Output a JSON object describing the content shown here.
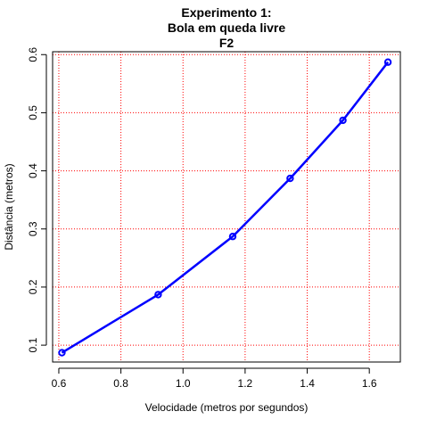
{
  "chart_data": {
    "type": "line",
    "title_lines": [
      "Experimento 1:",
      "Bola em queda livre",
      "F2"
    ],
    "xlabel": "Velocidade (metros por segundos)",
    "ylabel": "Distância (metros)",
    "xlim": [
      0.58,
      1.7
    ],
    "ylim": [
      0.071,
      0.605
    ],
    "x_ticks": [
      0.6,
      0.8,
      1.0,
      1.2,
      1.4,
      1.6
    ],
    "x_tick_labels": [
      "0.6",
      "0.8",
      "1.0",
      "1.2",
      "1.4",
      "1.6"
    ],
    "y_ticks": [
      0.1,
      0.2,
      0.3,
      0.4,
      0.5,
      0.6
    ],
    "y_tick_labels": [
      "0.1",
      "0.2",
      "0.3",
      "0.4",
      "0.5",
      "0.6"
    ],
    "grid": true,
    "grid_color": "#ff0000",
    "series": [
      {
        "color": "#0000ff",
        "marker": "circle",
        "x": [
          0.61,
          0.92,
          1.16,
          1.345,
          1.515,
          1.66
        ],
        "y": [
          0.087,
          0.187,
          0.287,
          0.387,
          0.487,
          0.587
        ]
      }
    ]
  }
}
